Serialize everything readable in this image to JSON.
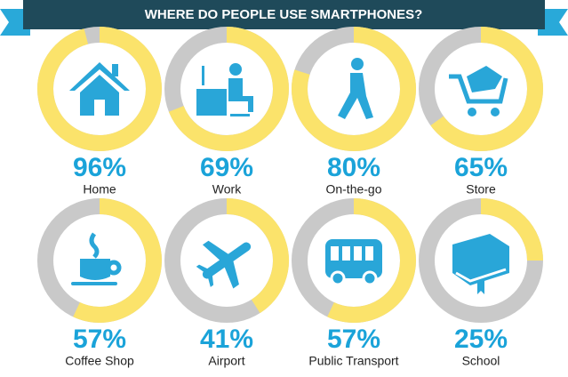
{
  "chart_data": {
    "type": "donut",
    "title": "WHERE DO PEOPLE USE SMARTPHONES?",
    "categories": [
      "Home",
      "Work",
      "On-the-go",
      "Store",
      "Coffee Shop",
      "Airport",
      "Public Transport",
      "School"
    ],
    "values": [
      96,
      69,
      80,
      65,
      57,
      41,
      57,
      25
    ],
    "value_labels": [
      "96%",
      "69%",
      "80%",
      "65%",
      "57%",
      "41%",
      "57%",
      "25%"
    ],
    "color": "#fbe36b",
    "track_color": "#c9c9c9"
  }
}
